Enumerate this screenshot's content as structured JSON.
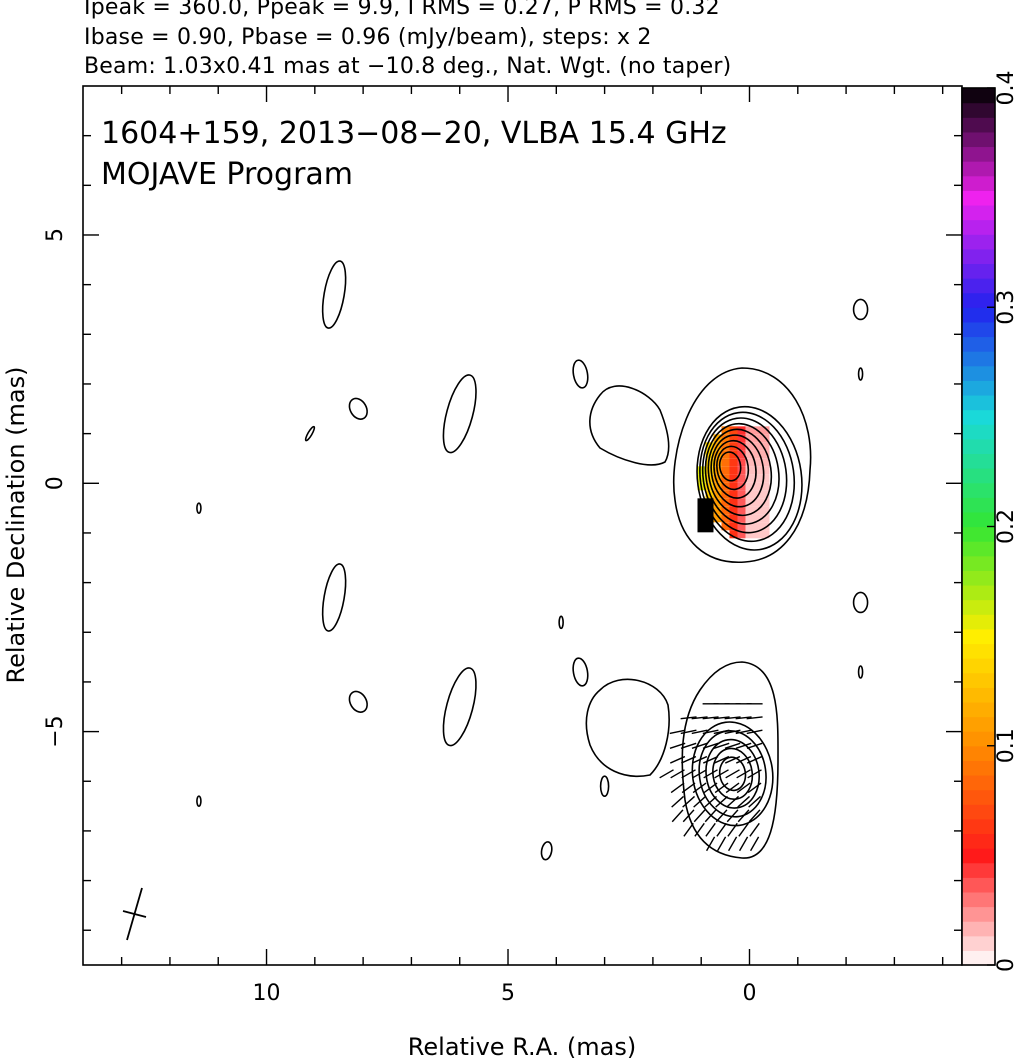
{
  "header": {
    "line1": "Ipeak = 360.0, Ppeak = 9.9, I RMS = 0.27, P RMS = 0.32",
    "line2": "Ibase = 0.90, Pbase = 0.96 (mJy/beam), steps: x 2",
    "line3": "Beam: 1.03x0.41 mas at −10.8 deg., Nat. Wgt. (no taper)"
  },
  "chart_data": {
    "type": "heatmap",
    "title": "1604+159, 2013−08−20, VLBA 15.4 GHz",
    "subtitle": "MOJAVE Program",
    "xlabel": "Relative R.A. (mas)",
    "ylabel": "Relative Declination (mas)",
    "xlim": [
      13.8,
      -4.4
    ],
    "ylim": [
      -9.7,
      8.0
    ],
    "x_ticks": [
      {
        "value": 10,
        "label": "10"
      },
      {
        "value": 5,
        "label": "5"
      },
      {
        "value": 0,
        "label": "0"
      }
    ],
    "y_ticks": [
      {
        "value": 5,
        "label": "5"
      },
      {
        "value": 0,
        "label": "0"
      },
      {
        "value": -5,
        "label": "−5"
      }
    ],
    "colorbar": {
      "min": 0,
      "max": 0.4,
      "ticks": [
        {
          "value": 0,
          "label": "0"
        },
        {
          "value": 0.1,
          "label": "0.1"
        },
        {
          "value": 0.2,
          "label": "0.2"
        },
        {
          "value": 0.3,
          "label": "0.3"
        },
        {
          "value": 0.4,
          "label": "0.4"
        }
      ],
      "colors": [
        "#ffffff",
        "#ff1a1a",
        "#ff8c00",
        "#ffee00",
        "#33e633",
        "#1ad9d9",
        "#2222ee",
        "#ee22ee",
        "#000000"
      ]
    },
    "core_upper": {
      "ra": 0.0,
      "dec": 0.1,
      "levels": 9
    },
    "core_lower": {
      "ra": 0.35,
      "dec": -5.85,
      "levels": 5
    }
  }
}
